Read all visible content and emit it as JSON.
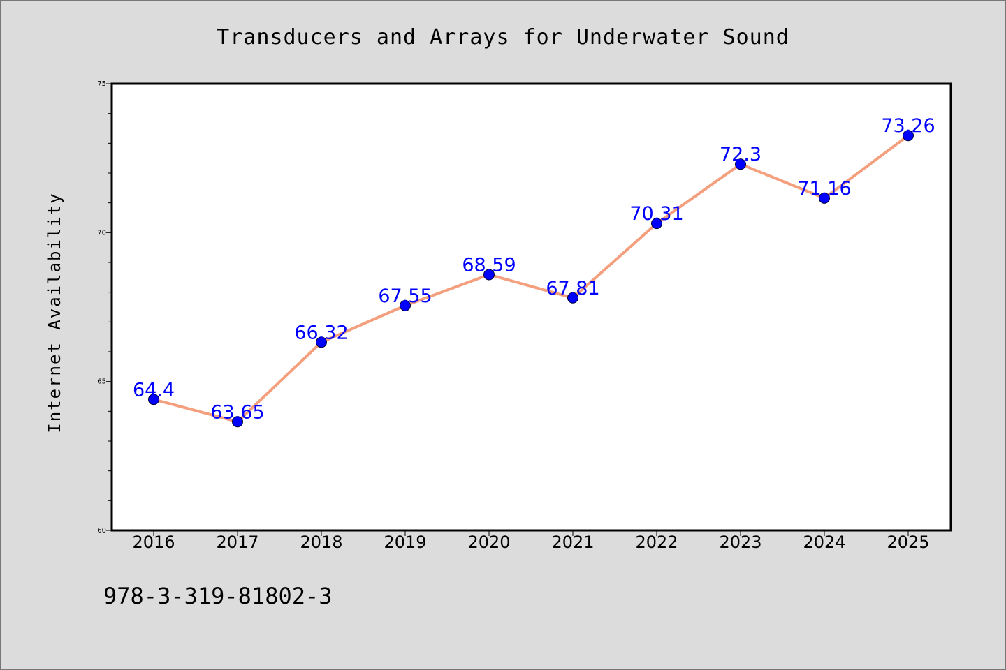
{
  "chart_data": {
    "type": "line",
    "title": "Transducers and Arrays for Underwater Sound",
    "xlabel": "",
    "ylabel": "Internet Availability",
    "categories": [
      "2016",
      "2017",
      "2018",
      "2019",
      "2020",
      "2021",
      "2022",
      "2023",
      "2024",
      "2025"
    ],
    "series": [
      {
        "values": [
          64.4,
          63.65,
          66.32,
          67.55,
          68.59,
          67.81,
          70.31,
          72.3,
          71.16,
          73.26
        ],
        "data_labels": [
          "64.4",
          "63.65",
          "66.32",
          "67.55",
          "68.59",
          "67.81",
          "70.31",
          "72.3",
          "71.16",
          "73.26"
        ]
      }
    ],
    "ylim": [
      60,
      75
    ],
    "yticks": [
      "60",
      "65",
      "70",
      "75"
    ],
    "grid": false,
    "legend": "none",
    "colors": {
      "line": "#f4a07e",
      "marker": "#0000ff",
      "label": "#0000ff",
      "plot_background": "#ffffff",
      "page_background": "#dcdcdc"
    }
  },
  "footer_note": "978-3-319-81802-3"
}
